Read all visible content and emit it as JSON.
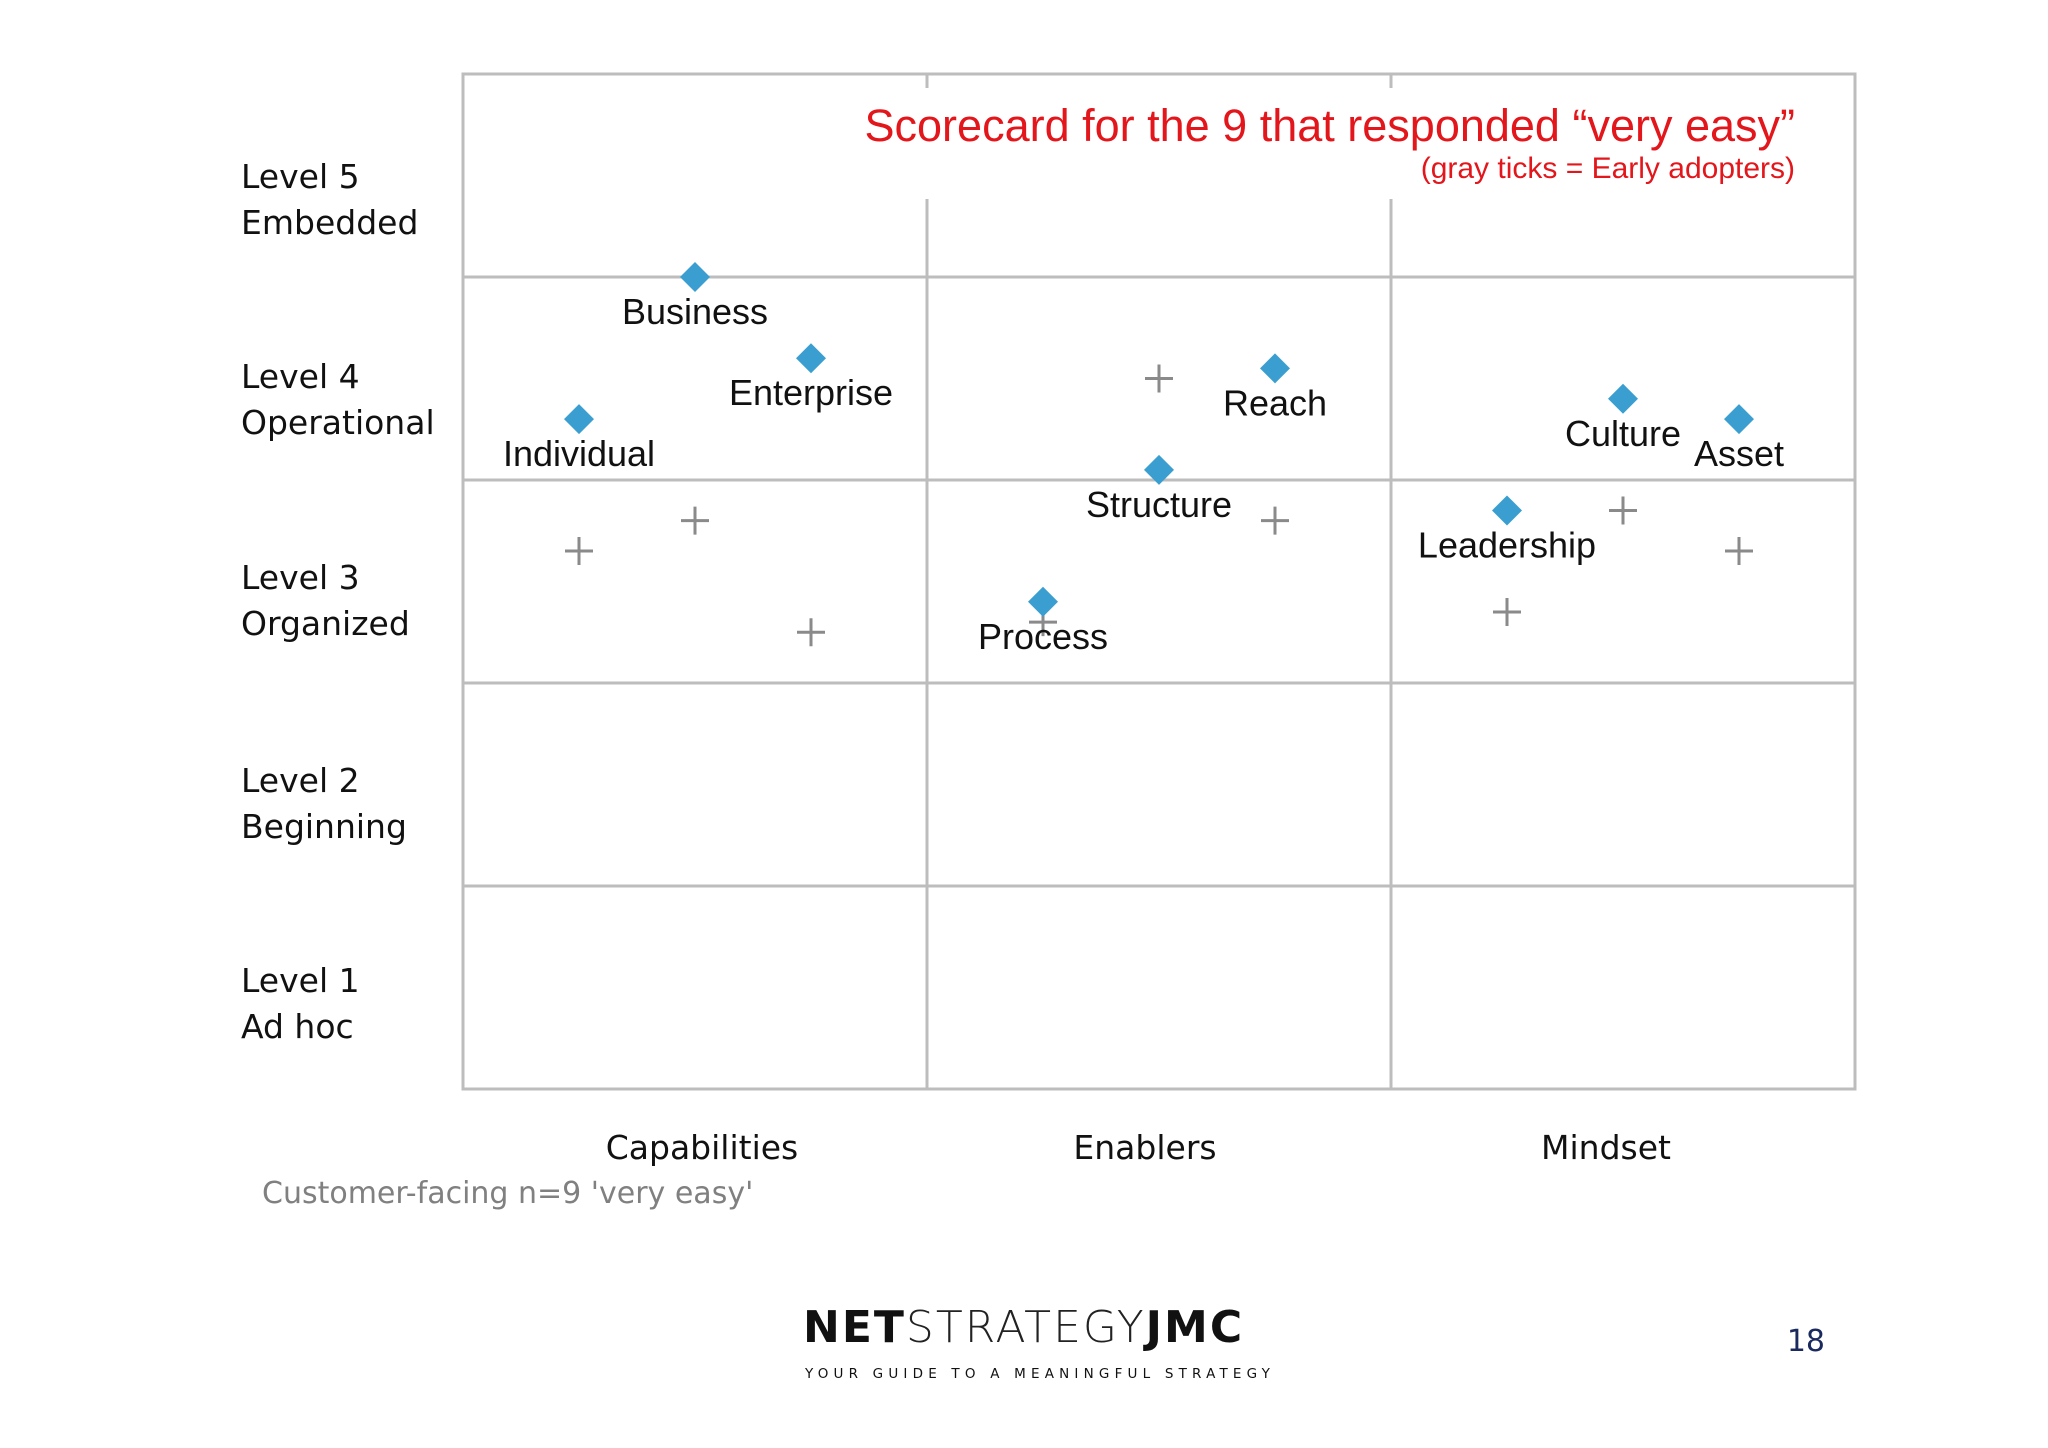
{
  "chart_data": {
    "type": "scatter",
    "title": "Scorecard for the 9 that responded “very easy”",
    "subtitle": "(gray ticks = Early adopters)",
    "categories": [
      "Capabilities",
      "Enablers",
      "Mindset"
    ],
    "levels": [
      {
        "level": "Level 5",
        "name": "Embedded"
      },
      {
        "level": "Level 4",
        "name": "Operational"
      },
      {
        "level": "Level 3",
        "name": "Organized"
      },
      {
        "level": "Level 2",
        "name": "Beginning"
      },
      {
        "level": "Level 1",
        "name": "Ad hoc"
      }
    ],
    "ylim": [
      0,
      5
    ],
    "grid": true,
    "series": [
      {
        "marker": "diamond",
        "color": "#3a9fd0",
        "points": [
          {
            "label": "Business",
            "x": 1.5,
            "y": 4.0
          },
          {
            "label": "Enterprise",
            "x": 1.75,
            "y": 3.6
          },
          {
            "label": "Individual",
            "x": 1.25,
            "y": 3.3
          },
          {
            "label": "Reach",
            "x": 2.75,
            "y": 3.55
          },
          {
            "label": "Structure",
            "x": 2.5,
            "y": 3.05
          },
          {
            "label": "Process",
            "x": 2.25,
            "y": 2.4
          },
          {
            "label": "Culture",
            "x": 3.5,
            "y": 3.4
          },
          {
            "label": "Asset",
            "x": 3.75,
            "y": 3.3
          },
          {
            "label": "Leadership",
            "x": 3.25,
            "y": 2.85
          }
        ]
      },
      {
        "name": "Early adopters",
        "marker": "plus",
        "color": "#8a8a8a",
        "points": [
          {
            "x": 1.5,
            "y": 2.8
          },
          {
            "x": 1.25,
            "y": 2.65
          },
          {
            "x": 1.75,
            "y": 2.25
          },
          {
            "x": 2.5,
            "y": 3.5
          },
          {
            "x": 2.75,
            "y": 2.8
          },
          {
            "x": 2.25,
            "y": 2.3
          },
          {
            "x": 3.5,
            "y": 2.85
          },
          {
            "x": 3.75,
            "y": 2.65
          },
          {
            "x": 3.25,
            "y": 2.35
          }
        ]
      }
    ]
  },
  "footnote": "Customer-facing n=9 'very easy'",
  "logo": {
    "part1": "NET",
    "part2": "STRATEGY",
    "part3": "JMC",
    "tagline": "YOUR GUIDE TO A MEANINGFUL STRATEGY"
  },
  "page_number": "18"
}
